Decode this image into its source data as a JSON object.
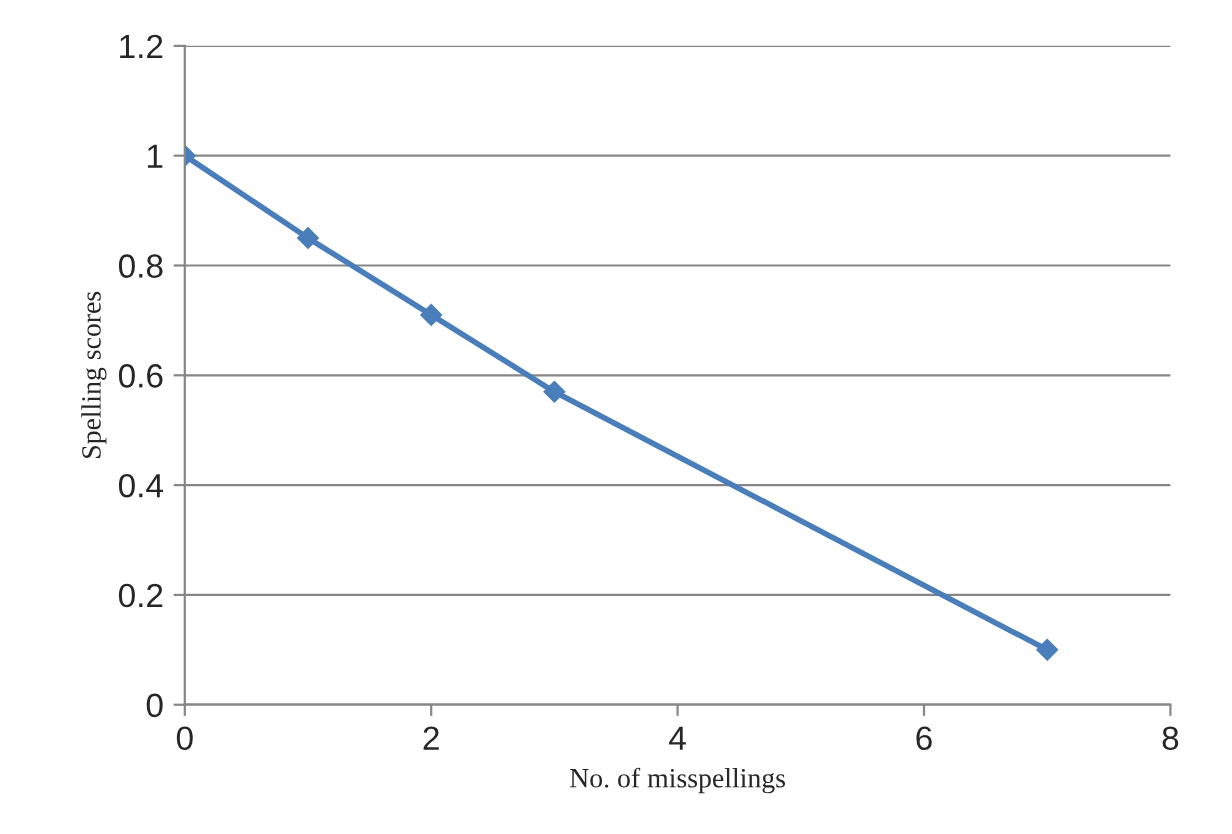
{
  "chart_data": {
    "type": "line",
    "xlabel": "No. of misspellings",
    "ylabel": "Spelling scores",
    "x": [
      0,
      1,
      2,
      3,
      7
    ],
    "series": [
      {
        "color": "#4a7ebb",
        "values": [
          1,
          0.85,
          0.71,
          0.57,
          0.1
        ]
      }
    ],
    "xlim": [
      0,
      8
    ],
    "xticks": [
      0,
      2,
      4,
      6,
      8
    ],
    "ylim": [
      0,
      1.2
    ],
    "yticks": [
      0,
      0.2,
      0.4,
      0.6,
      0.8,
      1,
      1.2
    ],
    "grid": "y",
    "marker": "diamond",
    "line_style": "solid"
  }
}
